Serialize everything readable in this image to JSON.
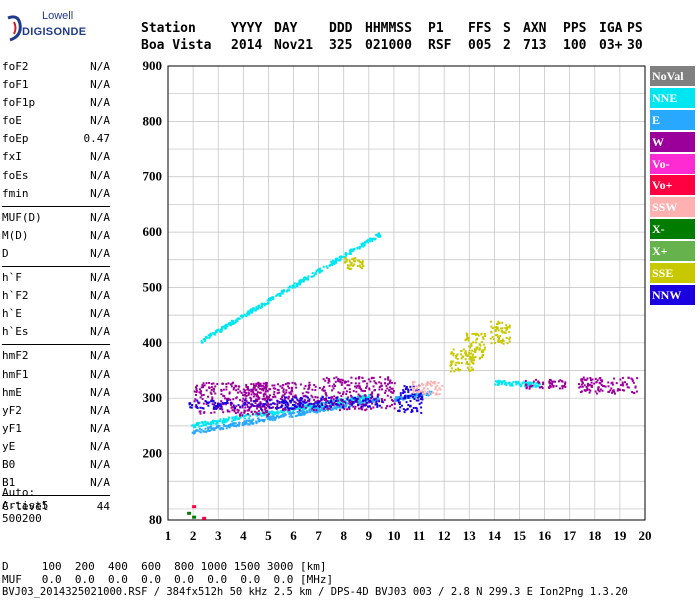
{
  "logo": {
    "top": "Lowell",
    "main": "DIGISONDE"
  },
  "header": {
    "labels": [
      "Station",
      "YYYY",
      "DAY",
      "DDD",
      "HHMMSS",
      "P1",
      "FFS",
      "S",
      "AXN",
      "PPS",
      "IGA",
      "PS"
    ],
    "values": [
      "Boa Vista",
      "2014",
      "Nov21",
      "325",
      "021000",
      "RSF",
      "005",
      "2",
      "713",
      "100",
      "03+",
      "30"
    ]
  },
  "params": [
    {
      "group": [
        {
          "name": "foF2",
          "value": "N/A"
        },
        {
          "name": "foF1",
          "value": "N/A"
        },
        {
          "name": "foF1p",
          "value": "N/A"
        },
        {
          "name": "foE",
          "value": "N/A"
        },
        {
          "name": "foEp",
          "value": "0.47"
        },
        {
          "name": "fxI",
          "value": "N/A"
        },
        {
          "name": "foEs",
          "value": "N/A"
        },
        {
          "name": "fmin",
          "value": "N/A"
        }
      ]
    },
    {
      "group": [
        {
          "name": "MUF(D)",
          "value": "N/A"
        },
        {
          "name": "M(D)",
          "value": "N/A"
        },
        {
          "name": "D",
          "value": "N/A"
        }
      ]
    },
    {
      "group": [
        {
          "name": "h`F",
          "value": "N/A"
        },
        {
          "name": "h`F2",
          "value": "N/A"
        },
        {
          "name": "h`E",
          "value": "N/A"
        },
        {
          "name": "h`Es",
          "value": "N/A"
        }
      ]
    },
    {
      "group": [
        {
          "name": "hmF2",
          "value": "N/A"
        },
        {
          "name": "hmF1",
          "value": "N/A"
        },
        {
          "name": "hmE",
          "value": "N/A"
        },
        {
          "name": "yF2",
          "value": "N/A"
        },
        {
          "name": "yF1",
          "value": "N/A"
        },
        {
          "name": "yE",
          "value": "N/A"
        },
        {
          "name": "B0",
          "value": "N/A"
        },
        {
          "name": "B1",
          "value": "N/A"
        }
      ]
    },
    {
      "group": [
        {
          "name": "C-level",
          "value": "44"
        }
      ]
    }
  ],
  "auto": {
    "line1": "Auto:",
    "line2": "Artist5",
    "line3": "500200"
  },
  "legend": [
    {
      "label": "NoVal",
      "color": "#808080"
    },
    {
      "label": "NNE",
      "color": "#00e6f0"
    },
    {
      "label": "E",
      "color": "#29a8ff"
    },
    {
      "label": "W",
      "color": "#9b009b"
    },
    {
      "label": "Vo-",
      "color": "#ff2bd2"
    },
    {
      "label": "Vo+",
      "color": "#ff0040"
    },
    {
      "label": "SSW",
      "color": "#ffb0b0"
    },
    {
      "label": "X-",
      "color": "#007d00"
    },
    {
      "label": "X+",
      "color": "#66b34d"
    },
    {
      "label": "SSE",
      "color": "#c8c800"
    },
    {
      "label": "NNW",
      "color": "#1a00e0"
    }
  ],
  "footer": {
    "row1_label": "D",
    "row1_values": [
      "100",
      "200",
      "400",
      "600",
      "800",
      "1000",
      "1500",
      "3000"
    ],
    "row1_unit": "[km]",
    "row2_label": "MUF",
    "row2_values": [
      "0.0",
      "0.0",
      "0.0",
      "0.0",
      "0.0",
      "0.0",
      "0.0",
      "0.0"
    ],
    "row2_unit": "[MHz]",
    "line": "BVJ03_2014325021000.RSF / 384fx512h 50 kHz 2.5 km / DPS-4D BVJ03 003 / 2.8 N 299.3 E Ion2Png 1.3.20"
  },
  "chart_data": {
    "type": "scatter",
    "title": "",
    "xlabel": "",
    "ylabel": "",
    "xlim": [
      1,
      20
    ],
    "ylim": [
      80,
      900
    ],
    "x_ticks": [
      1,
      2,
      3,
      4,
      5,
      6,
      7,
      8,
      9,
      10,
      11,
      12,
      13,
      14,
      15,
      16,
      17,
      18,
      19,
      20
    ],
    "y_ticks": [
      80,
      200,
      300,
      400,
      500,
      600,
      700,
      800,
      900
    ],
    "grid": true,
    "legend_position": "right",
    "series": [
      {
        "name": "E",
        "color": "#29a8ff",
        "segments": [
          [
            1.9,
            240,
            9.4,
            300
          ],
          [
            10.0,
            300,
            11.5,
            312
          ]
        ]
      },
      {
        "name": "NNE",
        "color": "#00e6f0",
        "segments": [
          [
            1.9,
            252,
            9.0,
            305
          ],
          [
            2.3,
            405,
            9.5,
            600
          ],
          [
            14.0,
            330,
            15.8,
            325
          ]
        ]
      },
      {
        "name": "W",
        "color": "#9b009b",
        "clusters": [
          [
            3.5,
            300,
            1.5,
            30
          ],
          [
            5.5,
            305,
            1.5,
            25
          ],
          [
            8.5,
            310,
            1.5,
            30
          ],
          [
            18.5,
            325,
            1.2,
            15
          ],
          [
            16.0,
            327,
            0.8,
            8
          ]
        ]
      },
      {
        "name": "NNW",
        "color": "#1a00e0",
        "clusters": [
          [
            4.0,
            290,
            2.2,
            8
          ],
          [
            7.5,
            295,
            2.0,
            10
          ],
          [
            10.6,
            300,
            0.5,
            25
          ]
        ]
      },
      {
        "name": "SSE",
        "color": "#c8c800",
        "clusters": [
          [
            12.7,
            370,
            0.5,
            20
          ],
          [
            13.2,
            395,
            0.4,
            25
          ],
          [
            14.2,
            420,
            0.4,
            20
          ],
          [
            8.4,
            545,
            0.4,
            10
          ]
        ]
      },
      {
        "name": "SSW",
        "color": "#ffb0b0",
        "clusters": [
          [
            11.3,
            320,
            0.6,
            12
          ]
        ]
      },
      {
        "name": "X-",
        "color": "#007d00",
        "points": [
          [
            1.8,
            93
          ],
          [
            2.0,
            86
          ]
        ]
      },
      {
        "name": "Vo+",
        "color": "#ff0040",
        "points": [
          [
            2.0,
            105
          ],
          [
            2.4,
            84
          ]
        ]
      }
    ]
  }
}
